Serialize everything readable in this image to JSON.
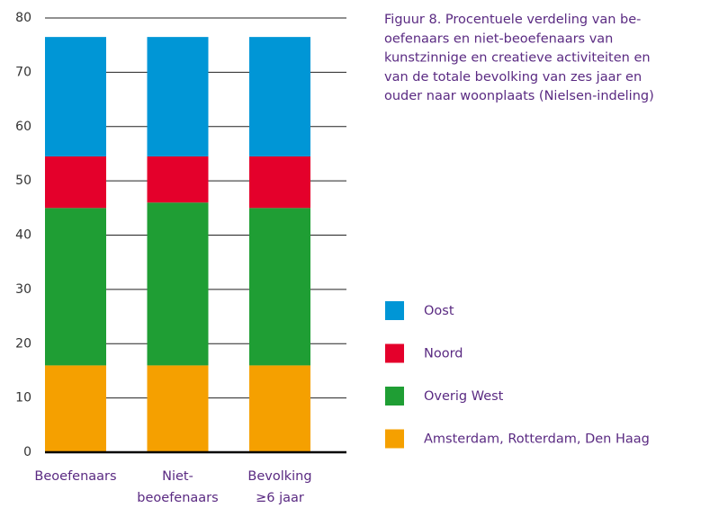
{
  "chart_data": {
    "type": "stacked_bar",
    "title": [
      "Figuur 8. Procentuele verdeling van be-",
      "oefenaars en niet-beoefenaars van",
      "kunstzinnige en creatieve activiteiten en",
      "van de totale bevolking van zes jaar en",
      "ouder naar woonplaats (Nielsen-indeling)"
    ],
    "categories": [
      [
        "Beoefenaars"
      ],
      [
        "Niet-",
        "beoefenaars"
      ],
      [
        "Bevolking",
        "≥6 jaar"
      ]
    ],
    "series": [
      {
        "name": "Amsterdam, Rotterdam, Den Haag",
        "color": "#f5a000",
        "values": [
          16,
          16,
          16
        ]
      },
      {
        "name": "Overig West",
        "color": "#1f9e34",
        "values": [
          29,
          30,
          29
        ]
      },
      {
        "name": "Noord",
        "color": "#e4002b",
        "values": [
          9.5,
          8.5,
          9.5
        ]
      },
      {
        "name": "Oost",
        "color": "#0096d6",
        "values": [
          22,
          22,
          22
        ]
      }
    ],
    "ylim": [
      0,
      80
    ],
    "yticks": [
      0,
      10,
      20,
      30,
      40,
      50,
      60,
      70,
      80
    ],
    "grid": true
  }
}
